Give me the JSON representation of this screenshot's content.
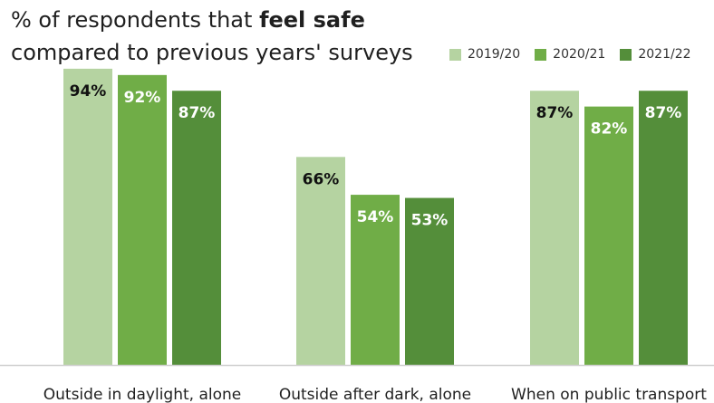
{
  "chart_data": {
    "type": "bar",
    "title_prefix": "% of respondents that ",
    "title_bold": "feel safe",
    "title_suffix": " compared to previous years' surveys",
    "categories": [
      "Outside in daylight, alone",
      "Outside after dark, alone",
      "When on public transport"
    ],
    "series": [
      {
        "name": "2019/20",
        "values": [
          94,
          66,
          87
        ],
        "labels": [
          "94%",
          "66%",
          "87%"
        ],
        "color": "#b5d3a1",
        "label_color": "#111111"
      },
      {
        "name": "2020/21",
        "values": [
          92,
          54,
          82
        ],
        "labels": [
          "92%",
          "54%",
          "82%"
        ],
        "color": "#70ad47",
        "label_color": "#ffffff"
      },
      {
        "name": "2021/22",
        "values": [
          87,
          53,
          87
        ],
        "labels": [
          "87%",
          "53%",
          "87%"
        ],
        "color": "#548e3a",
        "label_color": "#ffffff"
      }
    ],
    "ylim": [
      0,
      100
    ],
    "grid": false,
    "legend_position": "top-right"
  }
}
